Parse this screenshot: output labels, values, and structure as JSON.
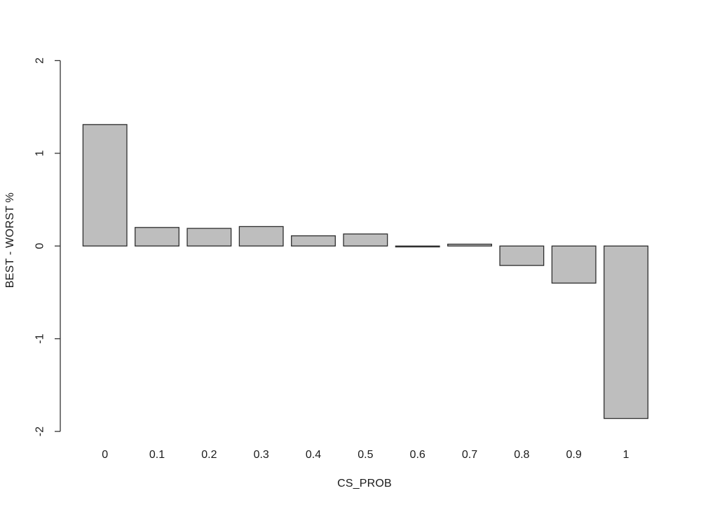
{
  "chart_data": {
    "type": "bar",
    "title": "",
    "xlabel": "CS_PROB",
    "ylabel": "BEST - WORST %",
    "categories": [
      "0",
      "0.1",
      "0.2",
      "0.3",
      "0.4",
      "0.5",
      "0.6",
      "0.7",
      "0.8",
      "0.9",
      "1"
    ],
    "values": [
      1.31,
      0.2,
      0.19,
      0.21,
      0.11,
      0.13,
      -0.01,
      0.02,
      -0.21,
      -0.4,
      -1.86
    ],
    "ylim": [
      -2,
      2
    ],
    "yticks": [
      2,
      1,
      0,
      -1,
      -2
    ],
    "ytick_labels": [
      "2",
      "1",
      "0",
      "-1",
      "-2"
    ],
    "grid": false,
    "legend": null,
    "bar_fill_color": "#bebebe",
    "bar_border_color": "#2e2e2e",
    "axis_color": "#333333",
    "background_color": "#ffffff"
  }
}
